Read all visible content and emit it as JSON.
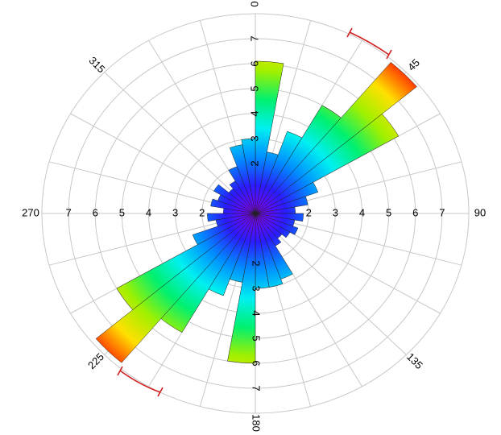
{
  "chart_data": {
    "type": "rose",
    "bin_width": 10,
    "categories": [
      5,
      15,
      25,
      35,
      45,
      55,
      65,
      75,
      85,
      95,
      105,
      115,
      125,
      135,
      145,
      155,
      165,
      175,
      185,
      195,
      205,
      215,
      225,
      235,
      245,
      255,
      265,
      275,
      285,
      295,
      305,
      315,
      325,
      335,
      345,
      355
    ],
    "values": [
      6.1,
      2.5,
      3.5,
      5.0,
      7.9,
      6.2,
      2.5,
      2.0,
      1.5,
      1.8,
      1.5,
      1.7,
      1.5,
      1.3,
      1.5,
      2.8,
      3.0,
      3.0,
      6.0,
      2.8,
      3.5,
      5.5,
      7.8,
      6.0,
      2.5,
      1.5,
      1.8,
      1.2,
      1.7,
      1.5,
      1.8,
      1.3,
      1.5,
      2.0,
      2.8,
      3.0
    ],
    "rlim": [
      0,
      8
    ],
    "rticks": [
      2,
      3,
      4,
      5,
      6,
      7
    ],
    "angle_ticks": [
      0,
      45,
      90,
      135,
      180,
      225,
      270,
      315
    ],
    "colormap": [
      "#8a00ff",
      "#2a1cff",
      "#0090ff",
      "#00f0f0",
      "#00f070",
      "#a0f000",
      "#ffe000",
      "#ff3000"
    ],
    "grid": true
  }
}
